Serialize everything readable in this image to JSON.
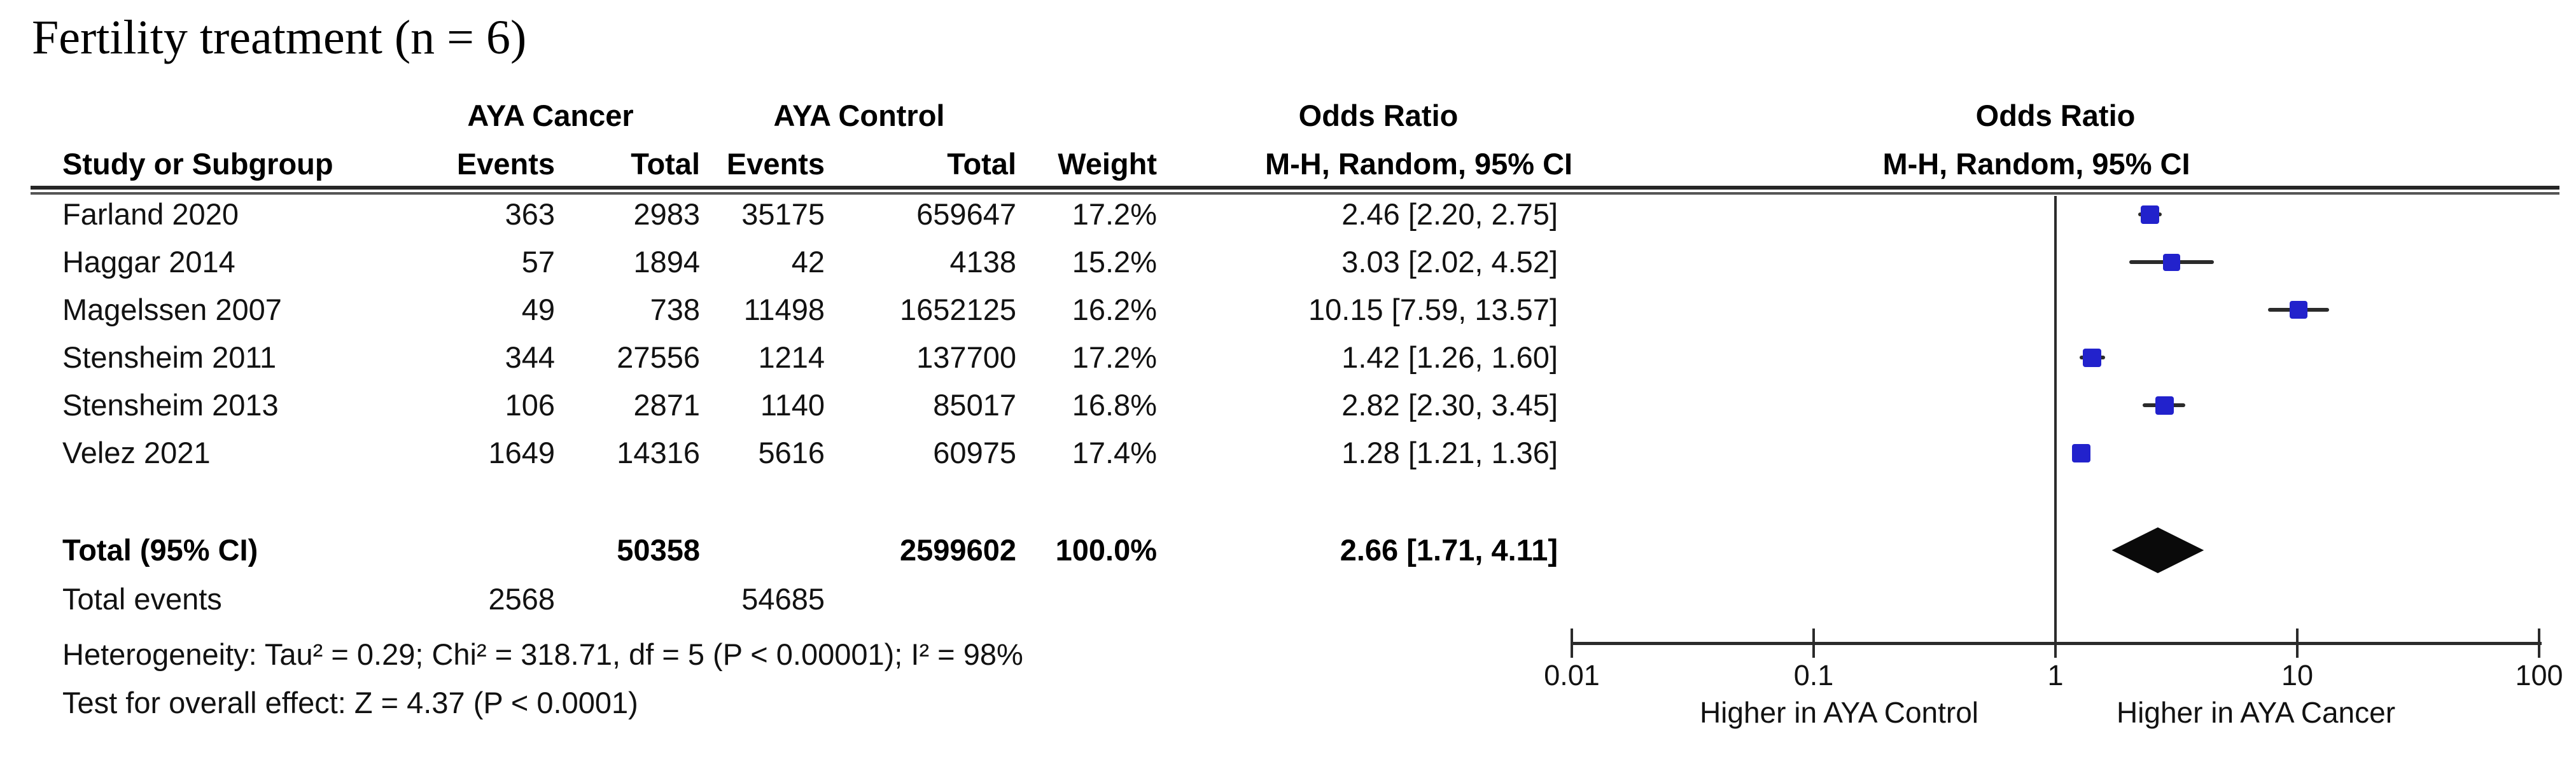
{
  "title": "Fertility treatment (n = 6)",
  "header": {
    "group_cancer": "AYA Cancer",
    "group_control": "AYA Control",
    "or_col_title": "Odds Ratio",
    "or_plot_title": "Odds Ratio",
    "study": "Study or Subgroup",
    "events_cancer": "Events",
    "total_cancer": "Total",
    "events_control": "Events",
    "total_control": "Total",
    "weight": "Weight",
    "or_method": "M-H, Random, 95% CI",
    "or_method_plot": "M-H, Random, 95% CI"
  },
  "chart_data": {
    "type": "scatter",
    "subtype": "forest-plot",
    "effect_measure": "Odds Ratio, M-H, Random, 95% CI",
    "x_scale": "log",
    "x_range": [
      0.01,
      100
    ],
    "x_ticks": [
      {
        "value": 0.01,
        "label": "0.01"
      },
      {
        "value": 0.1,
        "label": "0.1"
      },
      {
        "value": 1,
        "label": "1"
      },
      {
        "value": 10,
        "label": "10"
      },
      {
        "value": 100,
        "label": "100"
      }
    ],
    "studies": [
      {
        "name": "Farland 2020",
        "events_cancer": "363",
        "total_cancer": "2983",
        "events_control": "35175",
        "total_control": "659647",
        "weight": "17.2%",
        "weight_pct": 17.2,
        "or": 2.46,
        "ci_low": 2.2,
        "ci_high": 2.75,
        "or_label": "2.46 [2.20, 2.75]"
      },
      {
        "name": "Haggar 2014",
        "events_cancer": "57",
        "total_cancer": "1894",
        "events_control": "42",
        "total_control": "4138",
        "weight": "15.2%",
        "weight_pct": 15.2,
        "or": 3.03,
        "ci_low": 2.02,
        "ci_high": 4.52,
        "or_label": "3.03 [2.02, 4.52]"
      },
      {
        "name": "Magelssen 2007",
        "events_cancer": "49",
        "total_cancer": "738",
        "events_control": "11498",
        "total_control": "1652125",
        "weight": "16.2%",
        "weight_pct": 16.2,
        "or": 10.15,
        "ci_low": 7.59,
        "ci_high": 13.57,
        "or_label": "10.15 [7.59, 13.57]"
      },
      {
        "name": "Stensheim 2011",
        "events_cancer": "344",
        "total_cancer": "27556",
        "events_control": "1214",
        "total_control": "137700",
        "weight": "17.2%",
        "weight_pct": 17.2,
        "or": 1.42,
        "ci_low": 1.26,
        "ci_high": 1.6,
        "or_label": "1.42 [1.26, 1.60]"
      },
      {
        "name": "Stensheim 2013",
        "events_cancer": "106",
        "total_cancer": "2871",
        "events_control": "1140",
        "total_control": "85017",
        "weight": "16.8%",
        "weight_pct": 16.8,
        "or": 2.82,
        "ci_low": 2.3,
        "ci_high": 3.45,
        "or_label": "2.82 [2.30, 3.45]"
      },
      {
        "name": "Velez 2021",
        "events_cancer": "1649",
        "total_cancer": "14316",
        "events_control": "5616",
        "total_control": "60975",
        "weight": "17.4%",
        "weight_pct": 17.4,
        "or": 1.28,
        "ci_low": 1.21,
        "ci_high": 1.36,
        "or_label": "1.28 [1.21, 1.36]"
      }
    ],
    "total": {
      "label": "Total (95% CI)",
      "total_cancer": "50358",
      "total_control": "2599602",
      "weight": "100.0%",
      "or": 2.66,
      "ci_low": 1.71,
      "ci_high": 4.11,
      "or_label": "2.66 [1.71, 4.11]"
    },
    "total_events": {
      "label": "Total events",
      "cancer": "2568",
      "control": "54685"
    },
    "footnotes": {
      "heterogeneity": "Heterogeneity: Tau² = 0.29; Chi² = 318.71, df = 5 (P < 0.00001); I² = 98%",
      "overall_effect": "Test for overall effect: Z = 4.37 (P < 0.0001)"
    },
    "direction_labels": {
      "left": "Higher in AYA Control",
      "right": "Higher in AYA Cancer"
    },
    "colors": {
      "marker": "#2222cc",
      "ci_line": "#2b2b2b",
      "diamond": "#0a0a0a",
      "axis": "#2b2b2b"
    }
  }
}
